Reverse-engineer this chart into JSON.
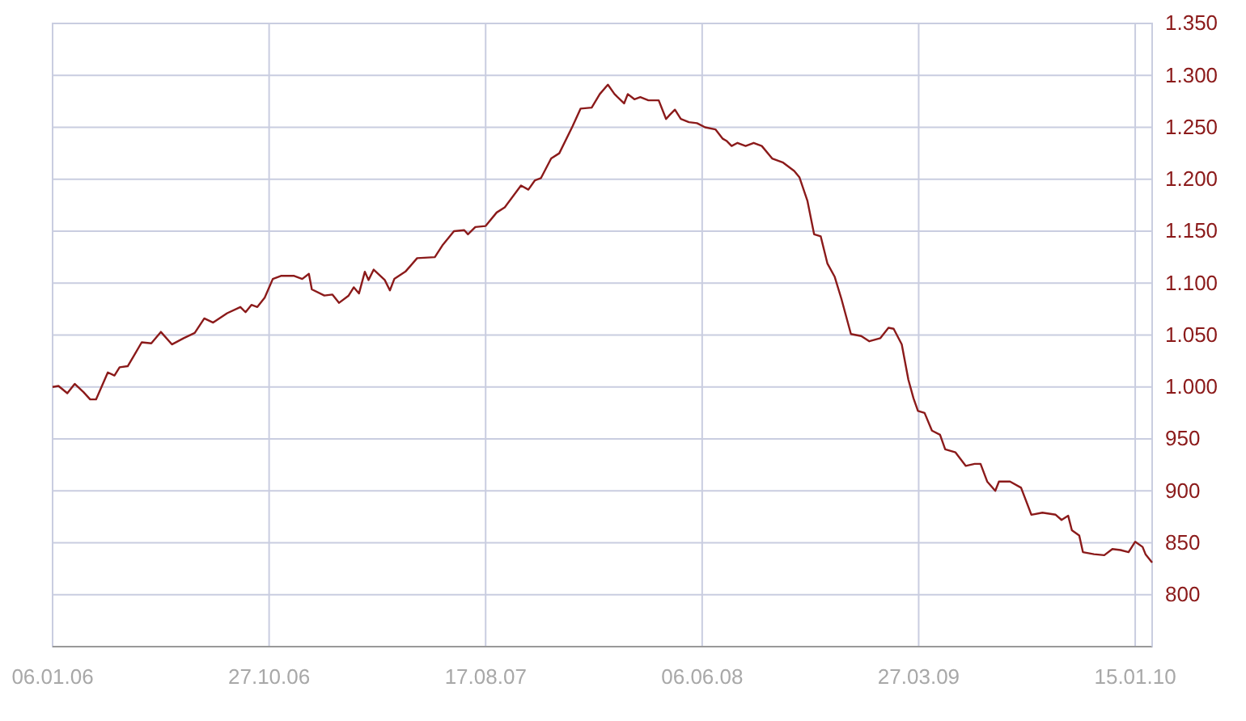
{
  "chart_data": {
    "type": "line",
    "x": [
      "2006-01-06",
      "2006-01-14",
      "2006-01-26",
      "2006-02-05",
      "2006-02-17",
      "2006-02-26",
      "2006-03-06",
      "2006-03-22",
      "2006-03-31",
      "2006-04-07",
      "2006-04-18",
      "2006-04-28",
      "2006-05-07",
      "2006-05-20",
      "2006-06-02",
      "2006-06-17",
      "2006-07-03",
      "2006-07-18",
      "2006-07-31",
      "2006-08-12",
      "2006-08-31",
      "2006-09-18",
      "2006-09-25",
      "2006-10-03",
      "2006-10-11",
      "2006-10-21",
      "2006-11-01",
      "2006-11-12",
      "2006-11-30",
      "2006-12-11",
      "2006-12-20",
      "2006-12-24",
      "2007-01-10",
      "2007-01-21",
      "2007-01-30",
      "2007-02-12",
      "2007-02-19",
      "2007-02-26",
      "2007-03-06",
      "2007-03-11",
      "2007-03-18",
      "2007-04-02",
      "2007-04-09",
      "2007-04-15",
      "2007-04-30",
      "2007-05-16",
      "2007-06-09",
      "2007-06-20",
      "2007-07-05",
      "2007-07-19",
      "2007-07-24",
      "2007-08-03",
      "2007-08-17",
      "2007-09-01",
      "2007-09-12",
      "2007-10-04",
      "2007-10-14",
      "2007-10-23",
      "2007-10-31",
      "2007-11-14",
      "2007-11-25",
      "2007-12-13",
      "2007-12-24",
      "2008-01-08",
      "2008-01-19",
      "2008-01-30",
      "2008-02-08",
      "2008-02-21",
      "2008-02-26",
      "2008-03-06",
      "2008-03-14",
      "2008-03-25",
      "2008-04-08",
      "2008-04-18",
      "2008-04-23",
      "2008-04-30",
      "2008-05-08",
      "2008-05-19",
      "2008-05-30",
      "2008-06-10",
      "2008-06-24",
      "2008-07-04",
      "2008-07-09",
      "2008-07-16",
      "2008-07-24",
      "2008-08-04",
      "2008-08-15",
      "2008-08-26",
      "2008-09-09",
      "2008-09-24",
      "2008-10-09",
      "2008-10-16",
      "2008-10-27",
      "2008-11-05",
      "2008-11-14",
      "2008-11-23",
      "2008-12-03",
      "2008-12-12",
      "2008-12-25",
      "2009-01-08",
      "2009-01-19",
      "2009-02-03",
      "2009-02-14",
      "2009-02-21",
      "2009-03-04",
      "2009-03-13",
      "2009-03-20",
      "2009-03-26",
      "2009-04-04",
      "2009-04-14",
      "2009-04-25",
      "2009-05-02",
      "2009-05-16",
      "2009-05-30",
      "2009-06-11",
      "2009-06-19",
      "2009-06-28",
      "2009-07-09",
      "2009-07-14",
      "2009-07-29",
      "2009-08-13",
      "2009-08-27",
      "2009-09-11",
      "2009-09-29",
      "2009-10-07",
      "2009-10-16",
      "2009-10-21",
      "2009-10-31",
      "2009-11-05",
      "2009-11-20",
      "2009-12-04",
      "2009-12-15",
      "2009-12-26",
      "2010-01-06",
      "2010-01-15",
      "2010-01-25",
      "2010-01-29",
      "2010-02-07"
    ],
    "series": [
      {
        "color": "#8b1a1a",
        "values": [
          1000,
          1001,
          994,
          1003,
          995,
          988,
          988,
          1014,
          1011,
          1019,
          1020,
          1032,
          1043,
          1042,
          1053,
          1041,
          1047,
          1052,
          1066,
          1062,
          1071,
          1077,
          1072,
          1079,
          1077,
          1086,
          1104,
          1107,
          1107,
          1104,
          1109,
          1094,
          1088,
          1089,
          1081,
          1088,
          1096,
          1090,
          1111,
          1103,
          1113,
          1103,
          1093,
          1104,
          1111,
          1124,
          1125,
          1137,
          1150,
          1151,
          1147,
          1154,
          1155,
          1168,
          1173,
          1194,
          1190,
          1199,
          1201,
          1220,
          1225,
          1251,
          1268,
          1269,
          1282,
          1291,
          1282,
          1273,
          1282,
          1277,
          1279,
          1276,
          1276,
          1258,
          1262,
          1267,
          1258,
          1255,
          1254,
          1250,
          1248,
          1239,
          1237,
          1232,
          1235,
          1232,
          1235,
          1232,
          1220,
          1216,
          1208,
          1202,
          1179,
          1147,
          1145,
          1119,
          1106,
          1085,
          1051,
          1049,
          1044,
          1047,
          1057,
          1056,
          1041,
          1007,
          989,
          977,
          975,
          958,
          954,
          940,
          937,
          924,
          926,
          926,
          909,
          900,
          909,
          909,
          903,
          877,
          879,
          877,
          872,
          876,
          862,
          857,
          841,
          839,
          838,
          844,
          843,
          841,
          851,
          846,
          839,
          831
        ]
      }
    ],
    "xlim": [
      "2006-01-06",
      "2010-02-07"
    ],
    "xticks": [
      {
        "value": "2006-01-06",
        "label": "06.01.06"
      },
      {
        "value": "2006-10-27",
        "label": "27.10.06"
      },
      {
        "value": "2007-08-17",
        "label": "17.08.07"
      },
      {
        "value": "2008-06-06",
        "label": "06.06.08"
      },
      {
        "value": "2009-03-27",
        "label": "27.03.09"
      },
      {
        "value": "2010-01-15",
        "label": "15.01.10"
      }
    ],
    "ylim": [
      750,
      1350
    ],
    "yticks": [
      800,
      850,
      900,
      950,
      {
        "value": 1000,
        "label": "1.000"
      },
      {
        "value": 1050,
        "label": "1.050"
      },
      {
        "value": 1100,
        "label": "1.100"
      },
      {
        "value": 1150,
        "label": "1.150"
      },
      {
        "value": 1200,
        "label": "1.200"
      },
      {
        "value": 1250,
        "label": "1.250"
      },
      {
        "value": 1300,
        "label": "1.300"
      },
      {
        "value": 1350,
        "label": "1.350"
      }
    ],
    "grid": true,
    "marker": "none",
    "line_style": "solid"
  }
}
